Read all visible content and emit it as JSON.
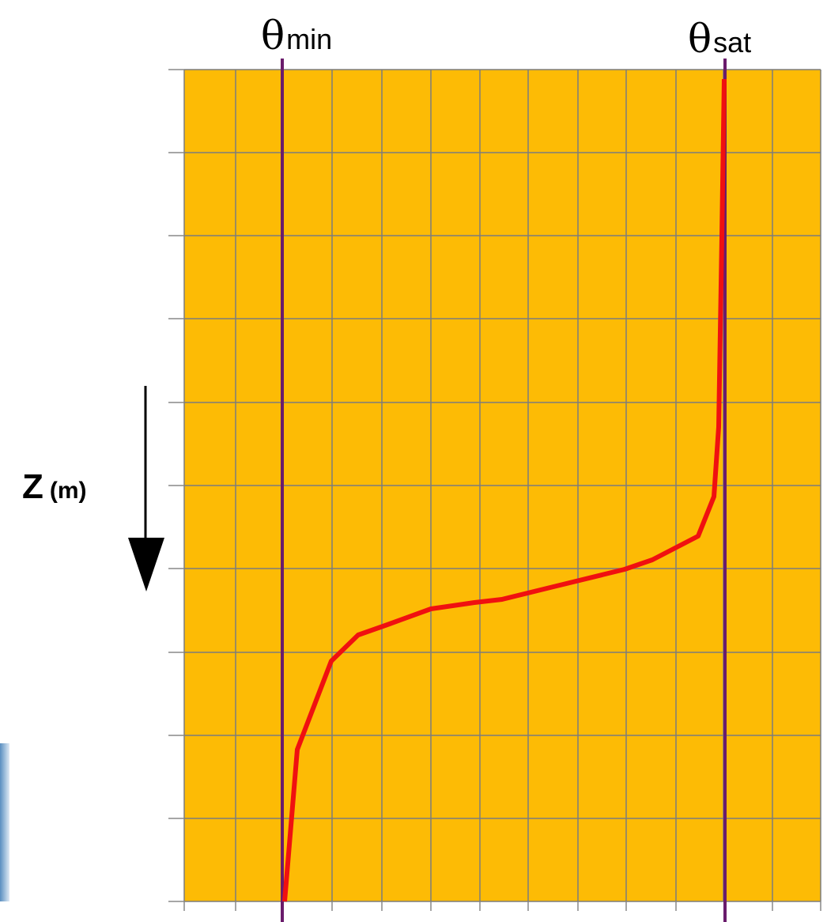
{
  "labels": {
    "theta_min": {
      "symbol": "θ",
      "sub": "min"
    },
    "theta_sat": {
      "symbol": "θ",
      "sub": "sat"
    },
    "depth": {
      "symbol": "Z",
      "unit": "(m)"
    }
  }
}
